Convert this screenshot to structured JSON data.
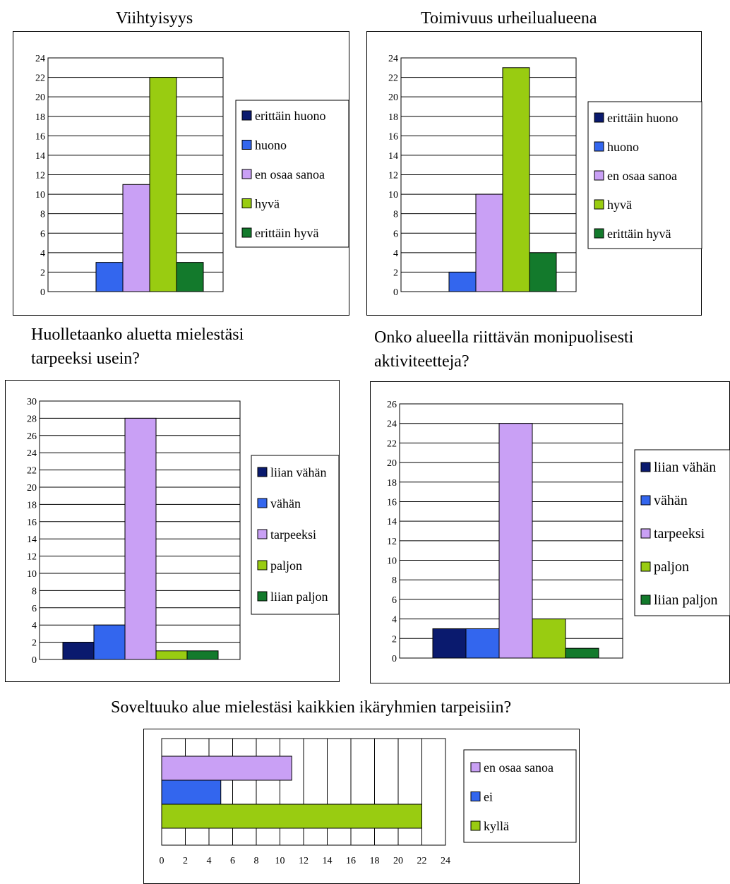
{
  "chart_data": [
    {
      "type": "bar",
      "title": "Viihtyisyys",
      "xlabel": "",
      "ylabel": "",
      "ylim": [
        0,
        24
      ],
      "yticks": [
        0,
        2,
        4,
        6,
        8,
        10,
        12,
        14,
        16,
        18,
        20,
        22,
        24
      ],
      "grid": true,
      "legend_position": "right",
      "series": [
        {
          "name": "erittäin huono",
          "color": "#0a1a6e",
          "value": 0
        },
        {
          "name": "huono",
          "color": "#3366ee",
          "value": 3
        },
        {
          "name": "en osaa sanoa",
          "color": "#c9a0f5",
          "value": 11
        },
        {
          "name": "hyvä",
          "color": "#99cc11",
          "value": 22
        },
        {
          "name": "erittäin hyvä",
          "color": "#137a2c",
          "value": 3
        }
      ]
    },
    {
      "type": "bar",
      "title": "Toimivuus urheilualueena",
      "xlabel": "",
      "ylabel": "",
      "ylim": [
        0,
        24
      ],
      "yticks": [
        0,
        2,
        4,
        6,
        8,
        10,
        12,
        14,
        16,
        18,
        20,
        22,
        24
      ],
      "grid": true,
      "legend_position": "right",
      "series": [
        {
          "name": "erittäin huono",
          "color": "#0a1a6e",
          "value": 0
        },
        {
          "name": "huono",
          "color": "#3366ee",
          "value": 2
        },
        {
          "name": "en osaa sanoa",
          "color": "#c9a0f5",
          "value": 10
        },
        {
          "name": "hyvä",
          "color": "#99cc11",
          "value": 23
        },
        {
          "name": "erittäin hyvä",
          "color": "#137a2c",
          "value": 4
        }
      ]
    },
    {
      "type": "bar",
      "title": "Huolletaanko aluetta mielestäsi tarpeeksi usein?",
      "title_lines": [
        "Huolletaanko aluetta mielestäsi",
        "tarpeeksi usein?"
      ],
      "xlabel": "",
      "ylabel": "",
      "ylim": [
        0,
        30
      ],
      "yticks": [
        0,
        2,
        4,
        6,
        8,
        10,
        12,
        14,
        16,
        18,
        20,
        22,
        24,
        26,
        28,
        30
      ],
      "grid": true,
      "legend_position": "right",
      "series": [
        {
          "name": "liian vähän",
          "color": "#0a1a6e",
          "value": 2
        },
        {
          "name": "vähän",
          "color": "#3366ee",
          "value": 4
        },
        {
          "name": "tarpeeksi",
          "color": "#c9a0f5",
          "value": 28
        },
        {
          "name": "paljon",
          "color": "#99cc11",
          "value": 1
        },
        {
          "name": "liian paljon",
          "color": "#137a2c",
          "value": 1
        }
      ]
    },
    {
      "type": "bar",
      "title": "Onko alueella riittävän monipuolisesti aktiviteetteja?",
      "title_lines": [
        "Onko alueella riittävän monipuolisesti",
        "aktiviteetteja?"
      ],
      "xlabel": "",
      "ylabel": "",
      "ylim": [
        0,
        26
      ],
      "yticks": [
        0,
        2,
        4,
        6,
        8,
        10,
        12,
        14,
        16,
        18,
        20,
        22,
        24,
        26
      ],
      "grid": true,
      "legend_position": "right",
      "series": [
        {
          "name": "liian vähän",
          "color": "#0a1a6e",
          "value": 3
        },
        {
          "name": "vähän",
          "color": "#3366ee",
          "value": 3
        },
        {
          "name": "tarpeeksi",
          "color": "#c9a0f5",
          "value": 24
        },
        {
          "name": "paljon",
          "color": "#99cc11",
          "value": 4
        },
        {
          "name": "liian paljon",
          "color": "#137a2c",
          "value": 1
        }
      ]
    },
    {
      "type": "bar",
      "orientation": "horizontal",
      "title": "Soveltuuko alue mielestäsi kaikkien ikäryhmien tarpeisiin?",
      "xlabel": "",
      "ylabel": "",
      "xlim": [
        0,
        24
      ],
      "xticks": [
        0,
        2,
        4,
        6,
        8,
        10,
        12,
        14,
        16,
        18,
        20,
        22,
        24
      ],
      "grid": true,
      "legend_position": "right",
      "series": [
        {
          "name": "en osaa sanoa",
          "color": "#c9a0f5",
          "value": 11
        },
        {
          "name": "ei",
          "color": "#3366ee",
          "value": 5
        },
        {
          "name": "kyllä",
          "color": "#99cc11",
          "value": 22
        }
      ]
    }
  ]
}
